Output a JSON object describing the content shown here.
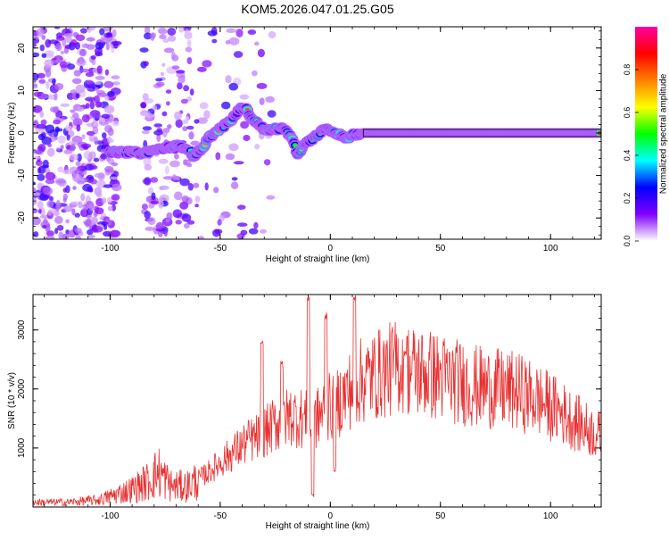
{
  "page": {
    "title": "KOM5.2026.047.01.25.G05"
  },
  "chart_data": [
    {
      "type": "heatmap",
      "xlabel": "Height of straight line (km)",
      "ylabel": "Frequency (Hz)",
      "xlim": [
        -135,
        123
      ],
      "ylim": [
        -25,
        25
      ],
      "xticks": [
        -100,
        -50,
        0,
        50,
        100
      ],
      "yticks": [
        -20,
        -10,
        0,
        10,
        20
      ],
      "colorbar": {
        "label": "Normalized spectral amplitude",
        "range": [
          0,
          1
        ],
        "ticks": [
          "0.0",
          "0.2",
          "0.4",
          "0.6",
          "0.8"
        ],
        "colors": [
          "#ffffff",
          "#8000ff",
          "#0000ff",
          "#00ffff",
          "#00ff00",
          "#ffff00",
          "#ff8000",
          "#ff0000",
          "#ff00a0"
        ]
      },
      "ridge": {
        "x": [
          -100,
          -95,
          -90,
          -85,
          -80,
          -75,
          -70,
          -65,
          -62,
          -58,
          -55,
          -50,
          -45,
          -42,
          -40,
          -38,
          -35,
          -32,
          -30,
          -25,
          -22,
          -20,
          -18,
          -16,
          -15,
          -12,
          -10,
          -8,
          -6,
          -4,
          -2,
          0,
          2,
          4,
          6,
          8,
          10,
          15,
          20,
          40,
          60,
          80,
          100,
          123
        ],
        "y": [
          -4.5,
          -4.5,
          -4.5,
          -4.8,
          -4,
          -3.5,
          -3,
          -3.5,
          -5.5,
          -3.5,
          -1,
          1,
          3,
          5,
          6,
          5.5,
          3,
          2,
          0.5,
          1,
          1,
          0.5,
          -1,
          -3,
          -5,
          -3,
          -2,
          -1.5,
          -0.5,
          0.5,
          0.8,
          0.5,
          0,
          -0.3,
          -1,
          -1.2,
          -0.5,
          0,
          0,
          0,
          0,
          0,
          0,
          0
        ]
      }
    },
    {
      "type": "line",
      "xlabel": "Height of straight line (km)",
      "ylabel": "SNR (10 * v/v)",
      "xlim": [
        -135,
        123
      ],
      "ylim": [
        0,
        3600
      ],
      "xticks": [
        -100,
        -50,
        0,
        50,
        100
      ],
      "yticks": [
        1000,
        2000,
        3000
      ],
      "color": "#e83030",
      "envelope": {
        "x": [
          -135,
          -120,
          -105,
          -90,
          -82,
          -78,
          -72,
          -65,
          -55,
          -45,
          -38,
          -32,
          -25,
          -18,
          -12,
          -8,
          -4,
          0,
          4,
          8,
          12,
          18,
          25,
          32,
          38,
          45,
          55,
          65,
          75,
          85,
          95,
          105,
          115,
          123
        ],
        "y": [
          80,
          80,
          120,
          300,
          450,
          600,
          350,
          350,
          600,
          900,
          1100,
          1200,
          1400,
          1550,
          1500,
          1400,
          1600,
          1700,
          1800,
          1950,
          2100,
          2200,
          2300,
          2400,
          2300,
          2250,
          2150,
          2050,
          2000,
          1950,
          1800,
          1600,
          1350,
          1200
        ]
      },
      "spikes": [
        {
          "x": -31,
          "y": 2900
        },
        {
          "x": -22,
          "y": 2500
        },
        {
          "x": -10,
          "y": 3600
        },
        {
          "x": -2,
          "y": 3300
        },
        {
          "x": 11,
          "y": 3600
        },
        {
          "x": 34,
          "y": 2650
        }
      ],
      "dips": [
        {
          "x": -8,
          "y": 150
        },
        {
          "x": 2,
          "y": 600
        }
      ]
    }
  ]
}
